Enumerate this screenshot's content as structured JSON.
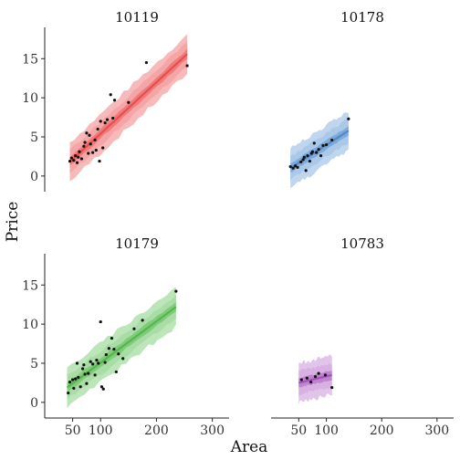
{
  "chart_data": {
    "type": "scatter",
    "subtype": "faceted scatter with regression prediction bands",
    "xlabel": "Area",
    "ylabel": "Price",
    "xlim": [
      0,
      330
    ],
    "ylim": [
      -2,
      19
    ],
    "xticks": [
      50,
      100,
      200,
      300
    ],
    "yticks": [
      0,
      5,
      10,
      15
    ],
    "grid": false,
    "panels": [
      {
        "name": "10119",
        "color": "#e8494a",
        "band_color": "#f4a3a3",
        "fit": {
          "x": [
            45,
            255
          ],
          "y": [
            1.8,
            15.6
          ]
        },
        "points": [
          [
            45,
            1.9
          ],
          [
            48,
            2.3
          ],
          [
            52,
            2.0
          ],
          [
            55,
            2.6
          ],
          [
            58,
            1.7
          ],
          [
            60,
            2.4
          ],
          [
            62,
            3.1
          ],
          [
            66,
            2.2
          ],
          [
            70,
            3.8
          ],
          [
            72,
            4.3
          ],
          [
            75,
            5.5
          ],
          [
            78,
            2.9
          ],
          [
            80,
            5.2
          ],
          [
            82,
            4.1
          ],
          [
            86,
            3.0
          ],
          [
            90,
            4.6
          ],
          [
            92,
            3.3
          ],
          [
            95,
            6.0
          ],
          [
            98,
            1.9
          ],
          [
            100,
            7.0
          ],
          [
            104,
            3.6
          ],
          [
            108,
            6.8
          ],
          [
            112,
            7.2
          ],
          [
            118,
            10.4
          ],
          [
            122,
            7.4
          ],
          [
            125,
            9.7
          ],
          [
            150,
            9.4
          ],
          [
            182,
            14.5
          ],
          [
            255,
            14.1
          ]
        ]
      },
      {
        "name": "10178",
        "color": "#4a86c8",
        "band_color": "#a9c8e8",
        "fit": {
          "x": [
            35,
            140
          ],
          "y": [
            1.0,
            5.8
          ]
        },
        "points": [
          [
            35,
            1.2
          ],
          [
            40,
            1.0
          ],
          [
            44,
            1.3
          ],
          [
            48,
            1.1
          ],
          [
            54,
            1.8
          ],
          [
            58,
            2.1
          ],
          [
            60,
            2.4
          ],
          [
            63,
            0.7
          ],
          [
            66,
            2.6
          ],
          [
            70,
            1.9
          ],
          [
            73,
            2.9
          ],
          [
            75,
            3.1
          ],
          [
            78,
            4.2
          ],
          [
            82,
            3.0
          ],
          [
            86,
            3.4
          ],
          [
            90,
            2.6
          ],
          [
            94,
            3.9
          ],
          [
            100,
            4.0
          ],
          [
            110,
            4.6
          ],
          [
            140,
            7.3
          ]
        ]
      },
      {
        "name": "10179",
        "color": "#4fb548",
        "band_color": "#a6dca3",
        "fit": {
          "x": [
            40,
            235
          ],
          "y": [
            1.9,
            12.2
          ]
        },
        "points": [
          [
            42,
            1.2
          ],
          [
            45,
            2.6
          ],
          [
            50,
            2.9
          ],
          [
            52,
            1.8
          ],
          [
            55,
            3.0
          ],
          [
            58,
            5.0
          ],
          [
            60,
            3.2
          ],
          [
            64,
            2.0
          ],
          [
            68,
            4.3
          ],
          [
            70,
            4.8
          ],
          [
            72,
            3.6
          ],
          [
            75,
            2.4
          ],
          [
            78,
            3.7
          ],
          [
            82,
            5.2
          ],
          [
            86,
            4.9
          ],
          [
            90,
            3.5
          ],
          [
            93,
            5.4
          ],
          [
            96,
            5.0
          ],
          [
            100,
            10.3
          ],
          [
            102,
            2.0
          ],
          [
            105,
            1.7
          ],
          [
            108,
            5.1
          ],
          [
            110,
            6.1
          ],
          [
            115,
            6.9
          ],
          [
            120,
            8.2
          ],
          [
            124,
            6.8
          ],
          [
            128,
            3.9
          ],
          [
            132,
            6.2
          ],
          [
            140,
            5.6
          ],
          [
            160,
            9.4
          ],
          [
            175,
            10.5
          ],
          [
            235,
            14.2
          ]
        ]
      },
      {
        "name": "10783",
        "color": "#a04db5",
        "band_color": "#d7b0e2",
        "fit": {
          "x": [
            50,
            110
          ],
          "y": [
            2.5,
            3.5
          ]
        },
        "points": [
          [
            55,
            2.9
          ],
          [
            65,
            3.1
          ],
          [
            72,
            2.6
          ],
          [
            80,
            3.3
          ],
          [
            86,
            3.7
          ],
          [
            98,
            3.5
          ],
          [
            110,
            1.9
          ]
        ]
      }
    ]
  }
}
